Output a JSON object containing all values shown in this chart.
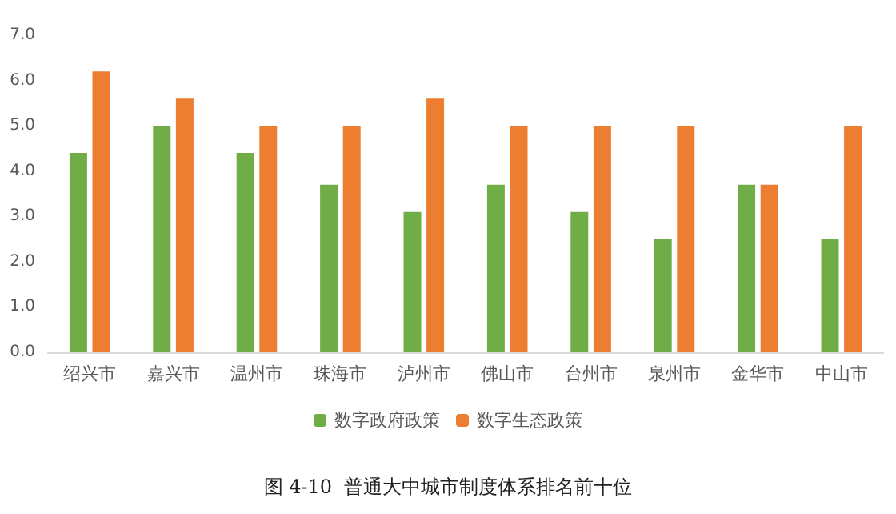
{
  "chart_data": {
    "type": "bar",
    "title": "图 4-10  普通大中城市制度体系排名前十位",
    "categories": [
      "绍兴市",
      "嘉兴市",
      "温州市",
      "珠海市",
      "泸州市",
      "佛山市",
      "台州市",
      "泉州市",
      "金华市",
      "中山市"
    ],
    "series": [
      {
        "name": "数字政府政策",
        "color": "#70ad47",
        "values": [
          4.4,
          5.0,
          4.4,
          3.7,
          3.1,
          3.7,
          3.1,
          2.5,
          3.7,
          2.5
        ]
      },
      {
        "name": "数字生态政策",
        "color": "#ed7d31",
        "values": [
          6.2,
          5.6,
          5.0,
          5.0,
          5.6,
          5.0,
          5.0,
          5.0,
          3.7,
          5.0
        ]
      }
    ],
    "ylim": [
      0,
      7
    ],
    "yticks": [
      {
        "value": 0,
        "label": "0.0"
      },
      {
        "value": 1,
        "label": "1.0"
      },
      {
        "value": 2,
        "label": "2.0"
      },
      {
        "value": 3,
        "label": "3.0"
      },
      {
        "value": 4,
        "label": "4.0"
      },
      {
        "value": 5,
        "label": "5.0"
      },
      {
        "value": 6,
        "label": "6.0"
      },
      {
        "value": 7,
        "label": "7.0"
      }
    ],
    "grid": false,
    "legend": "bottom"
  }
}
